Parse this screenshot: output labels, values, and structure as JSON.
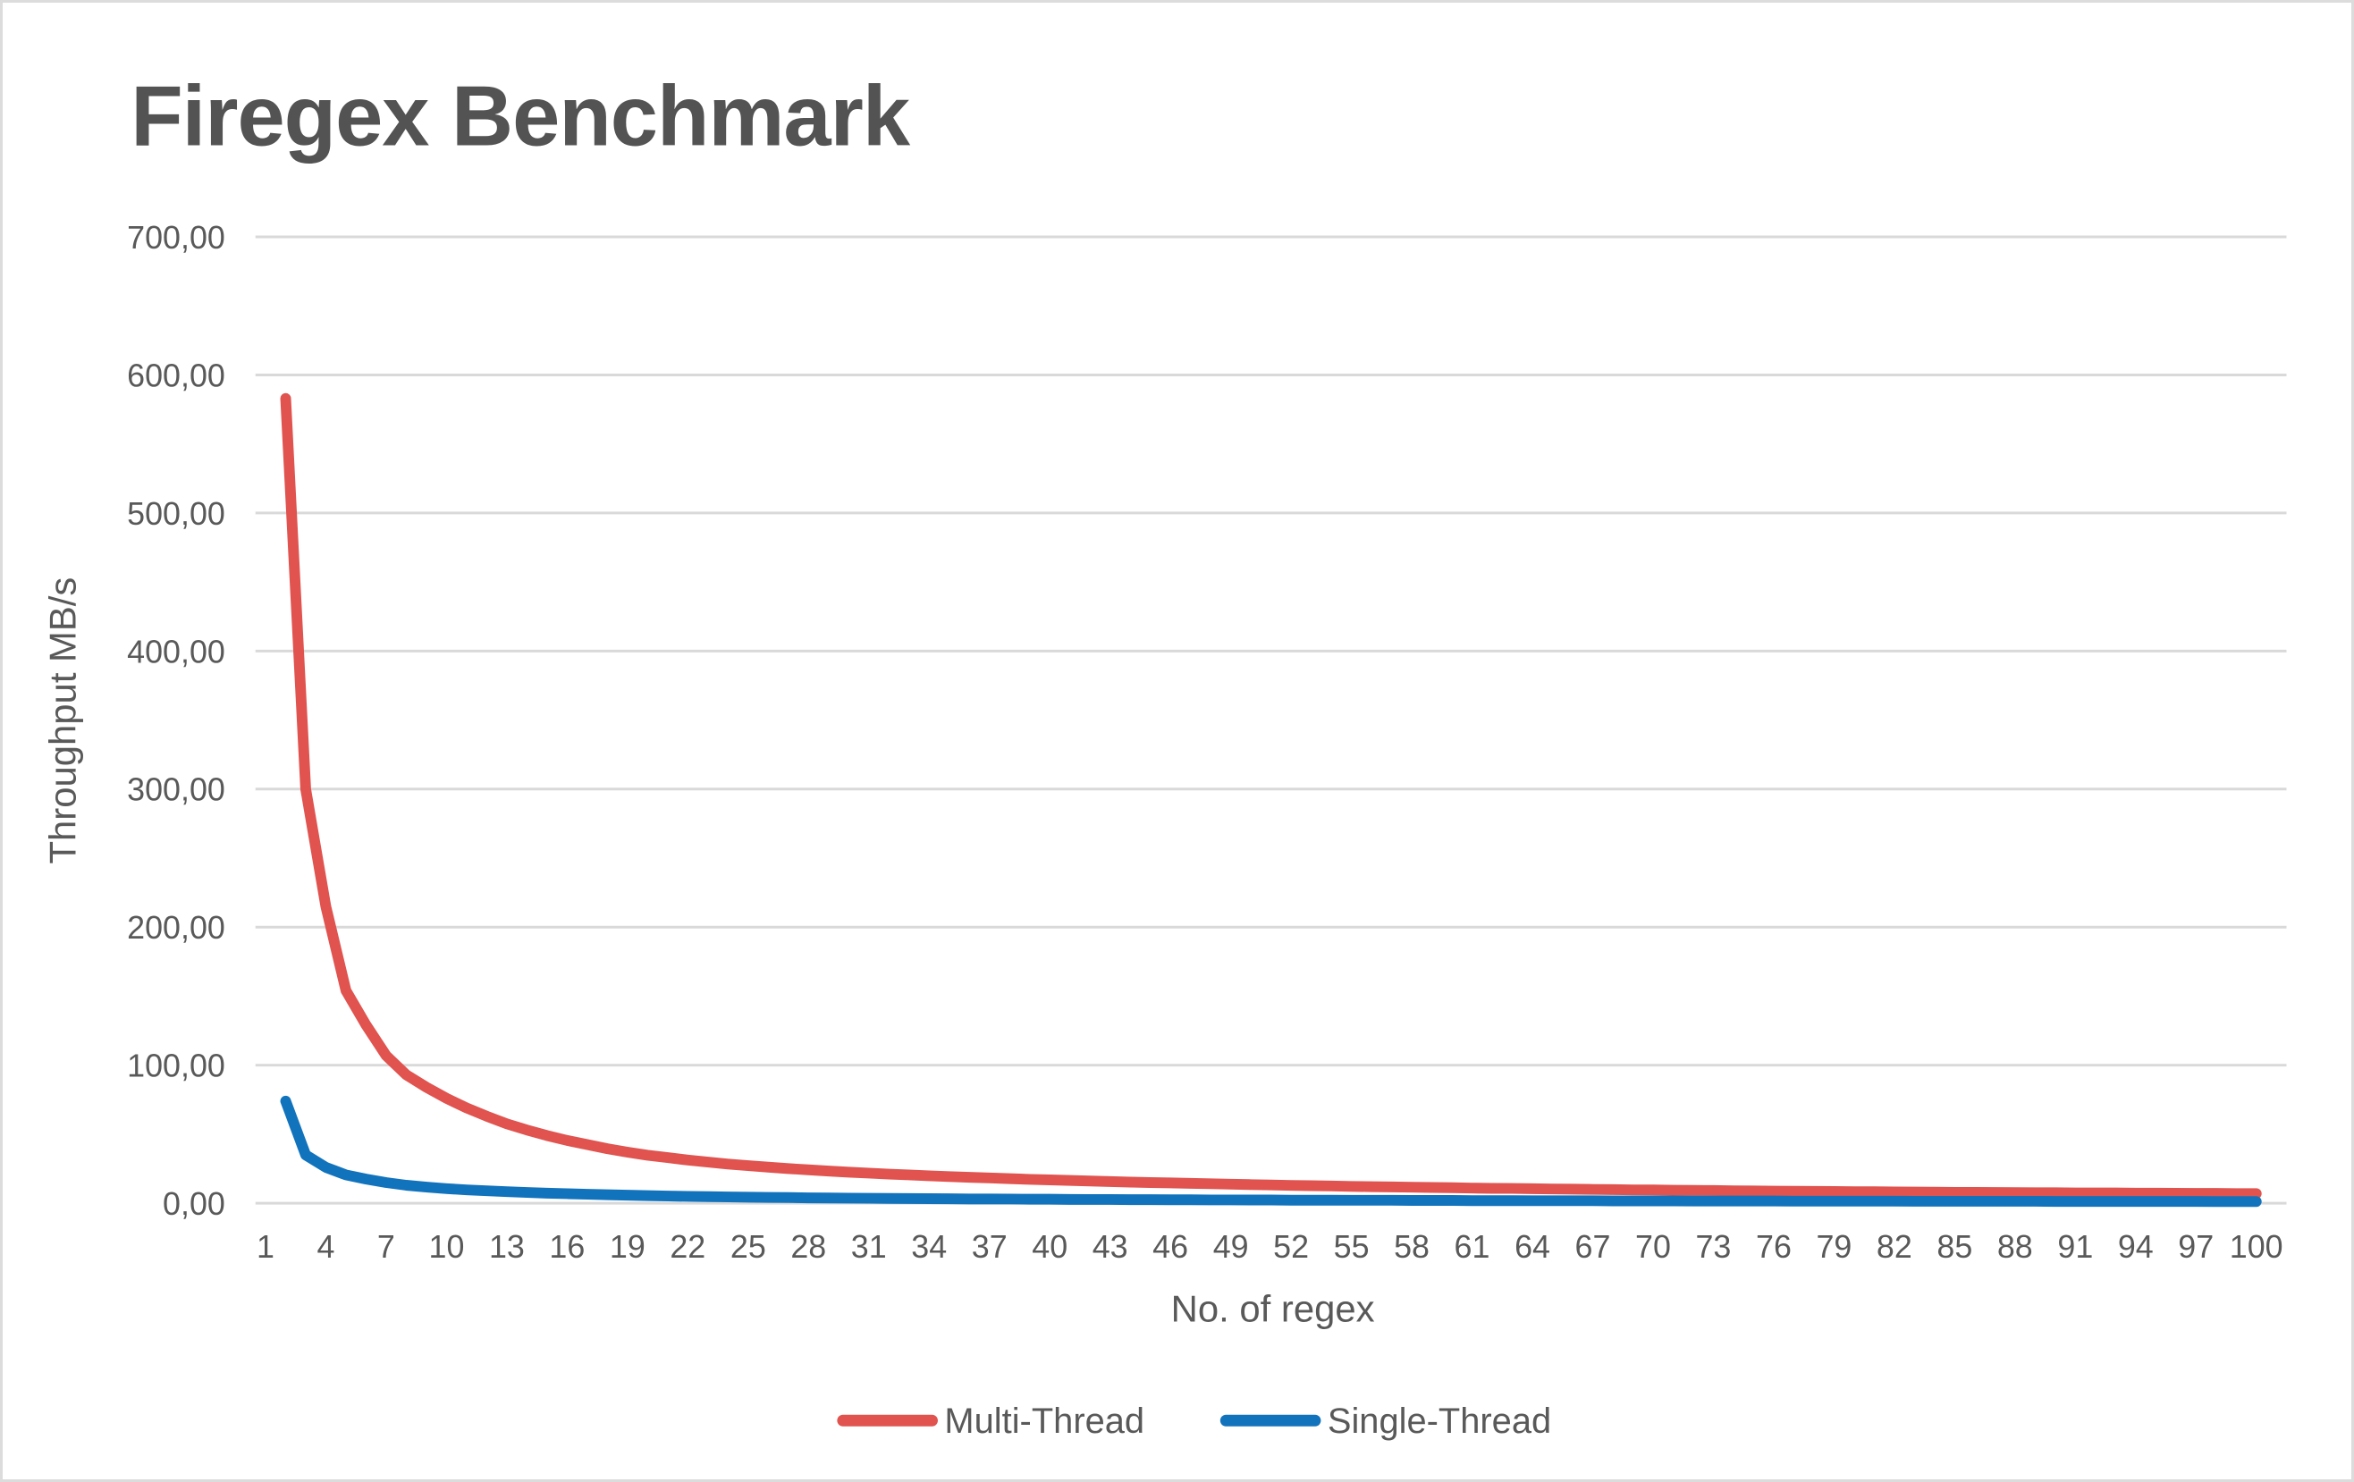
{
  "window": {
    "background": "#ffffff",
    "frame_color": "#dcdcdc"
  },
  "chart_data": {
    "type": "line",
    "title": "Firegex Benchmark",
    "xlabel": "No. of regex",
    "ylabel": "Throughput MB/s",
    "ylim": [
      0,
      700
    ],
    "y_step": 100,
    "y_tick_labels": [
      "0,00",
      "100,00",
      "200,00",
      "300,00",
      "400,00",
      "500,00",
      "600,00",
      "700,00"
    ],
    "x_tick_labels": [
      "1",
      "4",
      "7",
      "10",
      "13",
      "16",
      "19",
      "22",
      "25",
      "28",
      "31",
      "34",
      "37",
      "40",
      "43",
      "46",
      "49",
      "52",
      "55",
      "58",
      "61",
      "64",
      "67",
      "70",
      "73",
      "76",
      "79",
      "82",
      "85",
      "88",
      "91",
      "94",
      "97",
      "100"
    ],
    "x_range": [
      1,
      100
    ],
    "grid": "horizontal",
    "gridline_color": "#d9d9d9",
    "text_color": "#595959",
    "title_color": "#535353",
    "legend_position": "bottom-center",
    "series": [
      {
        "name": "Multi-Thread",
        "color": "#e0534f",
        "x_start": 2,
        "x_end": 100,
        "values": [
          583,
          300,
          215,
          154,
          129,
          107,
          93,
          84,
          76,
          69,
          63,
          57.5,
          53,
          49,
          45.5,
          42.5,
          39.5,
          37,
          34.8,
          33,
          31.3,
          29.8,
          28.4,
          27.2,
          26.1,
          25.1,
          24.2,
          23.3,
          22.5,
          21.8,
          21.1,
          20.5,
          19.9,
          19.3,
          18.8,
          18.3,
          17.8,
          17.3,
          16.9,
          16.5,
          16.1,
          15.7,
          15.3,
          15,
          14.7,
          14.4,
          14.1,
          13.8,
          13.5,
          13.2,
          12.9,
          12.7,
          12.5,
          12.2,
          12,
          11.8,
          11.6,
          11.4,
          11.2,
          11,
          10.8,
          10.7,
          10.5,
          10.3,
          10.2,
          10,
          9.9,
          9.7,
          9.6,
          9.4,
          9.3,
          9.2,
          9,
          8.9,
          8.8,
          8.7,
          8.6,
          8.5,
          8.4,
          8.3,
          8.2,
          8.1,
          8,
          7.9,
          7.9,
          7.8,
          7.7,
          7.6,
          7.6,
          7.5,
          7.4,
          7.4,
          7.3,
          7.3,
          7.2,
          7.1,
          7.1,
          7,
          7
        ]
      },
      {
        "name": "Single-Thread",
        "color": "#1273bd",
        "x_start": 2,
        "x_end": 100,
        "values": [
          74,
          35,
          26,
          20.5,
          17.5,
          15,
          13,
          11.7,
          10.6,
          9.7,
          9,
          8.4,
          7.8,
          7.3,
          6.9,
          6.5,
          6.1,
          5.8,
          5.5,
          5.2,
          5,
          4.8,
          4.6,
          4.4,
          4.2,
          4.1,
          3.9,
          3.8,
          3.7,
          3.6,
          3.5,
          3.4,
          3.3,
          3.2,
          3.1,
          3.1,
          3,
          2.9,
          2.9,
          2.8,
          2.7,
          2.7,
          2.6,
          2.6,
          2.5,
          2.5,
          2.4,
          2.4,
          2.3,
          2.3,
          2.2,
          2.2,
          2.2,
          2.1,
          2.1,
          2.1,
          2,
          2,
          2,
          1.9,
          1.9,
          1.9,
          1.8,
          1.8,
          1.8,
          1.8,
          1.7,
          1.7,
          1.7,
          1.7,
          1.6,
          1.6,
          1.6,
          1.6,
          1.6,
          1.5,
          1.5,
          1.5,
          1.5,
          1.5,
          1.5,
          1.4,
          1.4,
          1.4,
          1.4,
          1.4,
          1.4,
          1.4,
          1.3,
          1.3,
          1.3,
          1.3,
          1.3,
          1.3,
          1.3,
          1.3,
          1.2,
          1.2,
          1.2
        ]
      }
    ]
  }
}
